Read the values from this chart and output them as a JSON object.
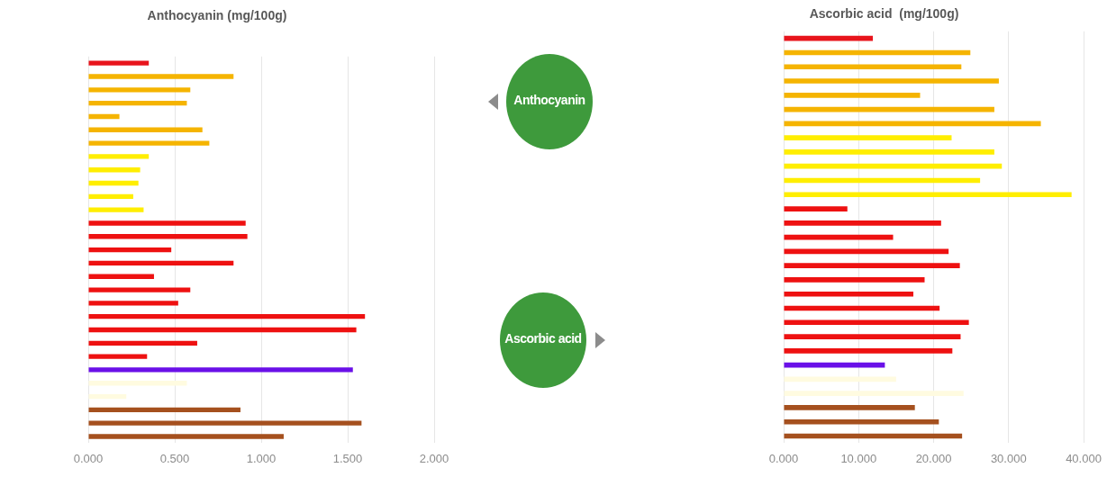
{
  "chart_data": [
    {
      "type": "bar",
      "orientation": "horizontal",
      "title": "Anthocyanin (mg/100g)",
      "categories": [
        null,
        null,
        null,
        null,
        null,
        null,
        null,
        null,
        null,
        null,
        null,
        null,
        null,
        null,
        null,
        null,
        null,
        null,
        null,
        null,
        null,
        null,
        null,
        null,
        null,
        null,
        null,
        null,
        null
      ],
      "values": [
        0.35,
        0.84,
        0.59,
        0.57,
        0.18,
        0.66,
        0.7,
        0.35,
        0.3,
        0.29,
        0.26,
        0.32,
        0.91,
        0.92,
        0.48,
        0.84,
        0.38,
        0.59,
        0.52,
        1.6,
        1.55,
        0.63,
        0.34,
        1.53,
        0.57,
        0.22,
        0.88,
        1.58,
        1.13
      ],
      "colors": [
        "#e8141c",
        "#f5b400",
        "#f5b400",
        "#f5b400",
        "#f5b400",
        "#f5b400",
        "#f5b400",
        "#ffee00",
        "#ffee00",
        "#ffee00",
        "#ffee00",
        "#ffee00",
        "#ee1111",
        "#ee1111",
        "#ee1111",
        "#ee1111",
        "#ee1111",
        "#ee1111",
        "#ee1111",
        "#ee1111",
        "#ee1111",
        "#ee1111",
        "#ee1111",
        "#6a10e8",
        "#fffbe0",
        "#fffbe0",
        "#a5501e",
        "#a5501e",
        "#a5501e"
      ],
      "xlim": [
        0,
        2
      ],
      "xticks": [
        {
          "value": 0,
          "label": "0.000"
        },
        {
          "value": 0.5,
          "label": "0.500"
        },
        {
          "value": 1,
          "label": "1.000"
        },
        {
          "value": 1.5,
          "label": "1.500"
        },
        {
          "value": 2,
          "label": "2.000"
        }
      ],
      "grid": "x",
      "tick_labels": "x"
    },
    {
      "type": "other",
      "annotations": [
        "Anthocyanin",
        "Ascorbic acid"
      ]
    },
    {
      "type": "bar",
      "orientation": "horizontal",
      "title": "Ascorbic acid  (mg/100g)",
      "categories": [
        null,
        null,
        null,
        null,
        null,
        null,
        null,
        null,
        null,
        null,
        null,
        null,
        null,
        null,
        null,
        null,
        null,
        null,
        null,
        null,
        null,
        null,
        null,
        null,
        null,
        null,
        null,
        null,
        null
      ],
      "values": [
        11.9,
        24.9,
        23.7,
        28.7,
        18.2,
        28.1,
        34.3,
        22.4,
        28.1,
        29.1,
        26.2,
        38.4,
        8.5,
        21.0,
        14.6,
        22.0,
        23.5,
        18.8,
        17.3,
        20.8,
        24.7,
        23.6,
        22.5,
        13.5,
        15.0,
        24.0,
        17.5,
        20.7,
        23.8
      ],
      "colors": [
        "#e8141c",
        "#f5b400",
        "#f5b400",
        "#f5b400",
        "#f5b400",
        "#f5b400",
        "#f5b400",
        "#ffee00",
        "#ffee00",
        "#ffee00",
        "#ffee00",
        "#ffee00",
        "#ee1111",
        "#ee1111",
        "#ee1111",
        "#ee1111",
        "#ee1111",
        "#ee1111",
        "#ee1111",
        "#ee1111",
        "#ee1111",
        "#ee1111",
        "#ee1111",
        "#6a10e8",
        "#fffbe0",
        "#fffbe0",
        "#a5501e",
        "#a5501e",
        "#a5501e"
      ],
      "xlim": [
        0,
        40
      ],
      "xticks": [
        {
          "value": 0,
          "label": "0.000"
        },
        {
          "value": 10,
          "label": "10.000"
        },
        {
          "value": 20,
          "label": "20.000"
        },
        {
          "value": 30,
          "label": "30.000"
        },
        {
          "value": 40,
          "label": "40.000"
        }
      ],
      "grid": "x",
      "tick_labels": "x"
    }
  ]
}
